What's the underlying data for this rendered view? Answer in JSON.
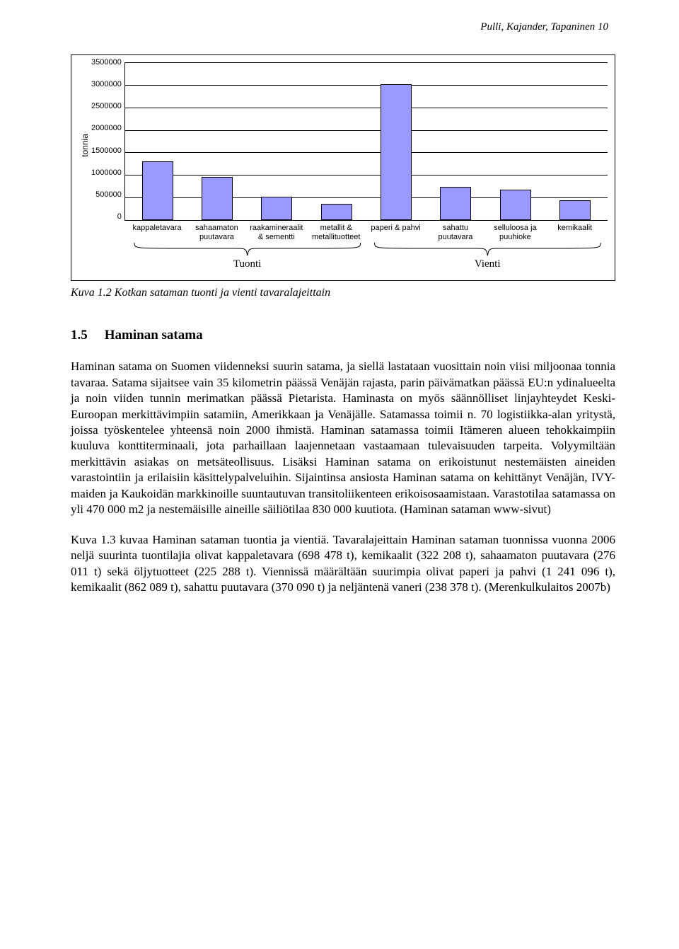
{
  "header": {
    "text": "Pulli, Kajander, Tapaninen    10"
  },
  "chart": {
    "type": "bar",
    "y_axis_label": "tonnia",
    "y_max": 3500000,
    "y_ticks": [
      "3500000",
      "3000000",
      "2500000",
      "2000000",
      "1500000",
      "1000000",
      "500000",
      "0"
    ],
    "bar_color": "#9999ff",
    "bar_border": "#000000",
    "grid_color": "#000000",
    "background_color": "#ffffff",
    "label_fontsize": 11,
    "categories": [
      {
        "label_lines": [
          "kappaletavara"
        ],
        "value": 1300000
      },
      {
        "label_lines": [
          "sahaamaton",
          "puutavara"
        ],
        "value": 960000
      },
      {
        "label_lines": [
          "raakamineraalit",
          "& sementti"
        ],
        "value": 510000
      },
      {
        "label_lines": [
          "metallit &",
          "metallituotteet"
        ],
        "value": 360000
      },
      {
        "label_lines": [
          "paperi & pahvi"
        ],
        "value": 3000000
      },
      {
        "label_lines": [
          "sahattu",
          "puutavara"
        ],
        "value": 730000
      },
      {
        "label_lines": [
          "selluloosa ja",
          "puuhioke"
        ],
        "value": 670000
      },
      {
        "label_lines": [
          "kemikaalit"
        ],
        "value": 430000
      }
    ],
    "groups": [
      {
        "label": "Tuonti",
        "span": [
          0,
          3
        ]
      },
      {
        "label": "Vienti",
        "span": [
          4,
          7
        ]
      }
    ]
  },
  "figure_caption": "Kuva 1.2 Kotkan sataman tuonti ja vienti tavaralajeittain",
  "section": {
    "number": "1.5",
    "title": "Haminan satama"
  },
  "paragraphs": {
    "p1": "Haminan satama on Suomen viidenneksi suurin satama, ja siellä lastataan vuosittain noin viisi miljoonaa tonnia tavaraa. Satama sijaitsee vain 35 kilometrin päässä Venäjän rajasta, parin päivämatkan päässä EU:n ydinalueelta ja noin viiden tunnin merimatkan päässä Pietarista. Haminasta on myös säännölliset linjayhteydet Keski-Euroopan merkittävimpiin satamiin, Amerikkaan ja Venäjälle. Satamassa toimii n. 70 logistiikka-alan yritystä, joissa työskentelee yhteensä noin 2000 ihmistä. Haminan satamassa toimii Itämeren alueen tehokkaimpiin kuuluva konttiterminaali, jota parhaillaan laajennetaan vastaamaan tulevaisuuden tarpeita. Volyymiltään merkittävin asiakas on metsäteollisuus. Lisäksi Haminan satama on erikoistunut nestemäisten aineiden varastointiin ja erilaisiin käsittelypalveluihin. Sijaintinsa ansiosta Haminan satama on kehittänyt Venäjän, IVY-maiden ja Kaukoidän markkinoille suuntautuvan transitoliikenteen erikoisosaamistaan. Varastotilaa satamassa on yli 470 000 m2 ja nestemäisille aineille säiliötilaa 830 000 kuutiota. (Haminan sataman www-sivut)",
    "p2": "Kuva 1.3 kuvaa Haminan sataman tuontia ja vientiä. Tavaralajeittain Haminan sataman tuonnissa vuonna 2006 neljä suurinta tuontilajia olivat kappaletavara (698 478 t), kemikaalit (322 208 t), sahaamaton puutavara (276 011 t) sekä öljytuotteet (225 288 t). Viennissä määrältään suurimpia olivat paperi ja pahvi (1 241 096 t), kemikaalit (862 089 t), sahattu puutavara (370 090 t) ja neljäntenä vaneri (238 378 t). (Merenkulkulaitos 2007b)"
  }
}
